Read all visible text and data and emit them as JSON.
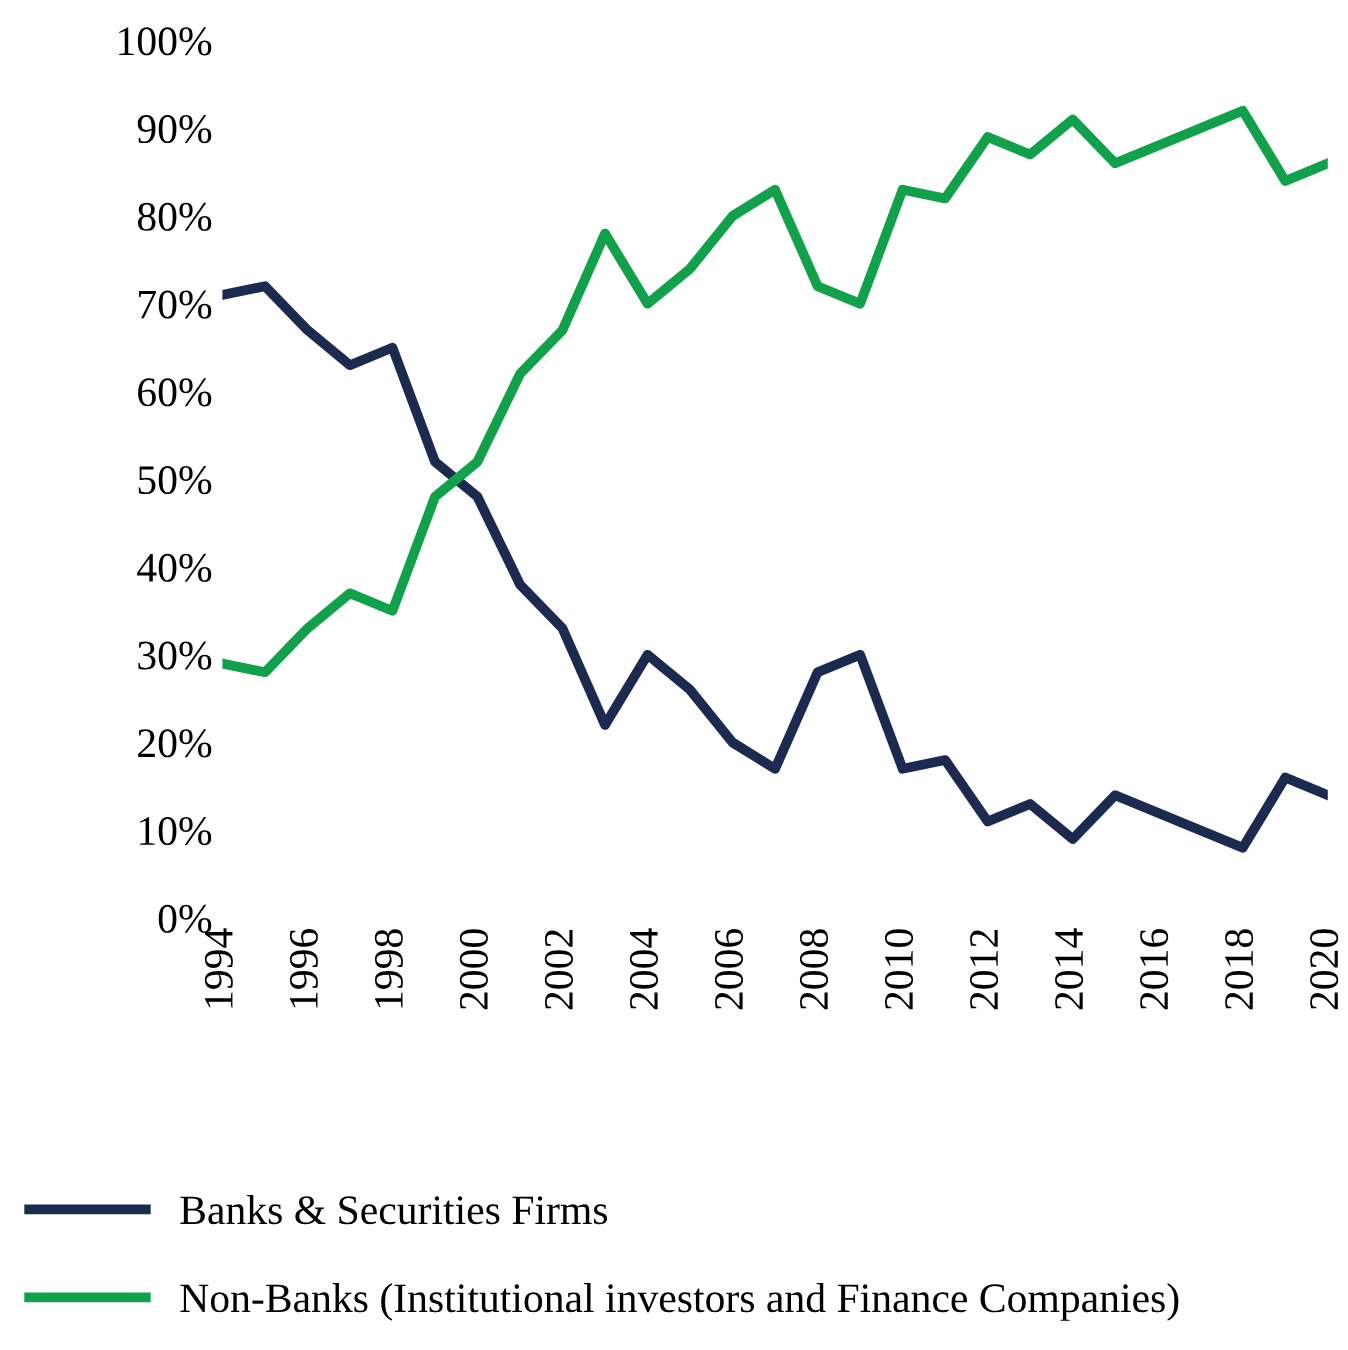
{
  "chart_data": {
    "type": "line",
    "x": [
      1994,
      1995,
      1996,
      1997,
      1998,
      1999,
      2000,
      2001,
      2002,
      2003,
      2004,
      2005,
      2006,
      2007,
      2008,
      2009,
      2010,
      2011,
      2012,
      2013,
      2014,
      2015,
      2016,
      2017,
      2018,
      2019,
      2020
    ],
    "series": [
      {
        "name": "Banks & Securities Firms",
        "color": "#1b2a4e",
        "values": [
          71,
          72,
          67,
          63,
          65,
          52,
          48,
          38,
          33,
          22,
          30,
          26,
          20,
          17,
          28,
          30,
          17,
          18,
          11,
          13,
          9,
          14,
          12,
          10,
          8,
          16,
          14
        ]
      },
      {
        "name": "Non-Banks (Institutional investors and Finance Companies)",
        "color": "#12a14b",
        "values": [
          29,
          28,
          33,
          37,
          35,
          48,
          52,
          62,
          67,
          78,
          70,
          74,
          80,
          83,
          72,
          70,
          83,
          82,
          89,
          87,
          91,
          86,
          88,
          90,
          92,
          84,
          86
        ]
      }
    ],
    "xlim": [
      1994,
      2020
    ],
    "xticks": [
      1994,
      1996,
      1998,
      2000,
      2002,
      2004,
      2006,
      2008,
      2010,
      2012,
      2014,
      2016,
      2018,
      2020
    ],
    "ylim": [
      0,
      100
    ],
    "yticks": [
      {
        "value": 0,
        "label": "0%"
      },
      {
        "value": 10,
        "label": "10%"
      },
      {
        "value": 20,
        "label": "20%"
      },
      {
        "value": 30,
        "label": "30%"
      },
      {
        "value": 40,
        "label": "40%"
      },
      {
        "value": 50,
        "label": "50%"
      },
      {
        "value": 60,
        "label": "60%"
      },
      {
        "value": 70,
        "label": "70%"
      },
      {
        "value": 80,
        "label": "80%"
      },
      {
        "value": 90,
        "label": "90%"
      },
      {
        "value": 100,
        "label": "100%"
      }
    ],
    "grid": false,
    "legend": "bottom",
    "line_style": "solid",
    "marker": "none"
  }
}
